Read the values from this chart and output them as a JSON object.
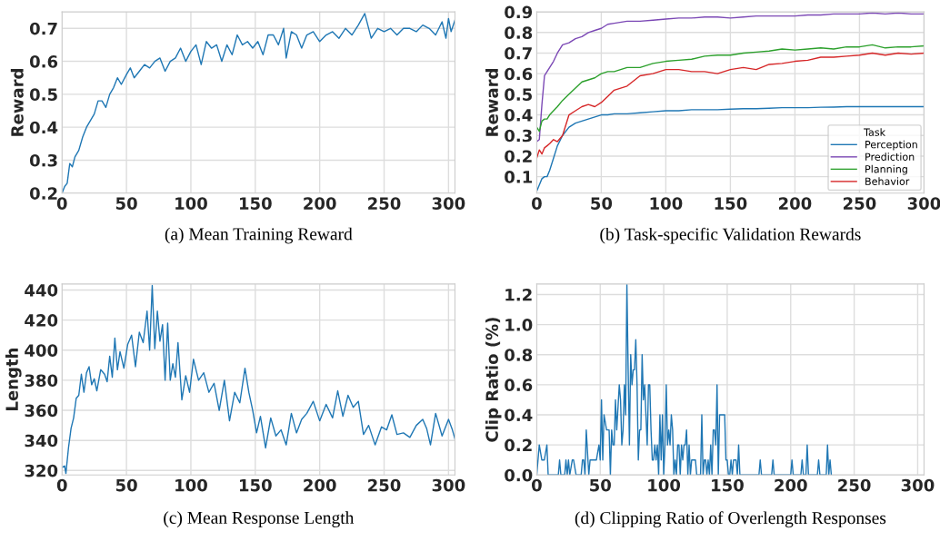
{
  "chart_data": [
    {
      "type": "line",
      "ylabel": "Reward",
      "annotations": [
        "(a) Mean Training Reward"
      ],
      "xlim": [
        0,
        305
      ],
      "ylim": [
        0.2,
        0.75
      ],
      "xticks": [
        0,
        50,
        100,
        150,
        200,
        250,
        300
      ],
      "yticks": [
        0.2,
        0.3,
        0.4,
        0.5,
        0.6,
        0.7
      ],
      "grid": true,
      "legend": false,
      "x": [
        0,
        2,
        4,
        6,
        8,
        10,
        13,
        16,
        19,
        22,
        25,
        28,
        31,
        34,
        37,
        40,
        43,
        46,
        50,
        53,
        56,
        60,
        64,
        68,
        72,
        76,
        80,
        84,
        88,
        92,
        96,
        100,
        104,
        108,
        112,
        116,
        120,
        124,
        128,
        132,
        136,
        140,
        144,
        148,
        152,
        156,
        160,
        164,
        168,
        172,
        174,
        178,
        182,
        186,
        190,
        195,
        200,
        205,
        210,
        215,
        220,
        225,
        230,
        235,
        240,
        245,
        250,
        255,
        260,
        265,
        270,
        275,
        280,
        285,
        290,
        295,
        298,
        300,
        302,
        305
      ],
      "series": [
        {
          "color": "#1f77b4",
          "values": [
            0.2,
            0.22,
            0.23,
            0.29,
            0.28,
            0.31,
            0.33,
            0.37,
            0.4,
            0.42,
            0.44,
            0.48,
            0.48,
            0.46,
            0.5,
            0.52,
            0.55,
            0.53,
            0.56,
            0.58,
            0.55,
            0.57,
            0.59,
            0.58,
            0.6,
            0.61,
            0.57,
            0.6,
            0.61,
            0.64,
            0.6,
            0.63,
            0.65,
            0.59,
            0.66,
            0.64,
            0.65,
            0.6,
            0.65,
            0.62,
            0.68,
            0.65,
            0.66,
            0.64,
            0.66,
            0.62,
            0.68,
            0.68,
            0.65,
            0.7,
            0.61,
            0.69,
            0.68,
            0.64,
            0.68,
            0.69,
            0.66,
            0.68,
            0.69,
            0.67,
            0.7,
            0.68,
            0.71,
            0.745,
            0.67,
            0.7,
            0.69,
            0.7,
            0.68,
            0.7,
            0.7,
            0.69,
            0.71,
            0.7,
            0.68,
            0.72,
            0.67,
            0.73,
            0.69,
            0.725
          ]
        }
      ]
    },
    {
      "type": "line",
      "ylabel": "Reward",
      "annotations": [
        "(b) Task-specific Validation Rewards"
      ],
      "xlim": [
        0,
        300
      ],
      "ylim": [
        0.02,
        0.9
      ],
      "xticks": [
        0,
        50,
        100,
        150,
        200,
        250,
        300
      ],
      "yticks": [
        0.1,
        0.2,
        0.3,
        0.4,
        0.5,
        0.6,
        0.7,
        0.8,
        0.9
      ],
      "grid": true,
      "legend": "bottom right",
      "legend_title": "Task",
      "x": [
        0,
        2,
        4,
        6,
        8,
        10,
        13,
        16,
        20,
        25,
        30,
        35,
        40,
        45,
        50,
        55,
        60,
        70,
        80,
        90,
        100,
        110,
        120,
        130,
        140,
        150,
        160,
        170,
        180,
        190,
        200,
        210,
        220,
        230,
        240,
        250,
        260,
        270,
        280,
        290,
        300
      ],
      "series": [
        {
          "name": "Perception",
          "color": "#1f77b4",
          "values": [
            0.03,
            0.06,
            0.09,
            0.1,
            0.1,
            0.13,
            0.19,
            0.25,
            0.3,
            0.34,
            0.36,
            0.37,
            0.38,
            0.39,
            0.4,
            0.4,
            0.405,
            0.405,
            0.41,
            0.415,
            0.42,
            0.42,
            0.425,
            0.425,
            0.425,
            0.428,
            0.43,
            0.43,
            0.432,
            0.435,
            0.435,
            0.435,
            0.437,
            0.438,
            0.44,
            0.44,
            0.44,
            0.44,
            0.44,
            0.44,
            0.44
          ]
        },
        {
          "name": "Prediction",
          "color": "#7b48b5",
          "values": [
            0.27,
            0.28,
            0.45,
            0.59,
            0.61,
            0.63,
            0.66,
            0.7,
            0.74,
            0.75,
            0.77,
            0.78,
            0.8,
            0.81,
            0.82,
            0.84,
            0.845,
            0.855,
            0.855,
            0.86,
            0.865,
            0.87,
            0.87,
            0.875,
            0.875,
            0.87,
            0.875,
            0.88,
            0.88,
            0.88,
            0.88,
            0.885,
            0.885,
            0.89,
            0.89,
            0.89,
            0.895,
            0.89,
            0.895,
            0.89,
            0.89
          ]
        },
        {
          "name": "Planning",
          "color": "#2ca02c",
          "values": [
            0.34,
            0.32,
            0.37,
            0.38,
            0.38,
            0.4,
            0.42,
            0.44,
            0.47,
            0.5,
            0.53,
            0.56,
            0.57,
            0.58,
            0.6,
            0.61,
            0.61,
            0.63,
            0.63,
            0.65,
            0.66,
            0.665,
            0.67,
            0.685,
            0.69,
            0.69,
            0.7,
            0.705,
            0.71,
            0.72,
            0.715,
            0.72,
            0.725,
            0.72,
            0.73,
            0.73,
            0.74,
            0.725,
            0.73,
            0.73,
            0.735
          ]
        },
        {
          "name": "Behavior",
          "color": "#d62728",
          "values": [
            0.19,
            0.23,
            0.21,
            0.24,
            0.25,
            0.26,
            0.28,
            0.27,
            0.3,
            0.4,
            0.42,
            0.44,
            0.45,
            0.44,
            0.46,
            0.49,
            0.52,
            0.54,
            0.59,
            0.6,
            0.62,
            0.62,
            0.61,
            0.61,
            0.6,
            0.62,
            0.63,
            0.62,
            0.645,
            0.65,
            0.66,
            0.665,
            0.68,
            0.68,
            0.685,
            0.69,
            0.7,
            0.69,
            0.7,
            0.695,
            0.7
          ]
        }
      ]
    },
    {
      "type": "line",
      "ylabel": "Length",
      "annotations": [
        "(c) Mean Response Length"
      ],
      "xlim": [
        0,
        305
      ],
      "ylim": [
        317,
        444
      ],
      "xticks": [
        0,
        50,
        100,
        150,
        200,
        250,
        300
      ],
      "yticks": [
        320,
        340,
        360,
        380,
        400,
        420,
        440
      ],
      "grid": true,
      "legend": false,
      "x": [
        0,
        2,
        3,
        5,
        7,
        9,
        11,
        13,
        15,
        17,
        19,
        21,
        23,
        25,
        27,
        30,
        33,
        35,
        37,
        39,
        41,
        43,
        45,
        48,
        51,
        54,
        57,
        60,
        63,
        66,
        68,
        70,
        72,
        74,
        76,
        78,
        80,
        82,
        84,
        86,
        88,
        90,
        93,
        96,
        99,
        102,
        106,
        110,
        114,
        118,
        122,
        126,
        130,
        134,
        138,
        142,
        145,
        148,
        151,
        154,
        158,
        162,
        166,
        170,
        174,
        178,
        182,
        186,
        190,
        195,
        200,
        205,
        210,
        214,
        218,
        222,
        226,
        230,
        234,
        238,
        243,
        248,
        252,
        256,
        260,
        265,
        270,
        275,
        280,
        283,
        286,
        290,
        295,
        300,
        303,
        305
      ],
      "series": [
        {
          "color": "#1f77b4",
          "values": [
            322,
            323,
            318,
            335,
            348,
            355,
            368,
            370,
            384,
            372,
            385,
            389,
            377,
            381,
            373,
            387,
            384,
            379,
            396,
            382,
            408,
            387,
            399,
            388,
            404,
            410,
            389,
            412,
            405,
            426,
            400,
            443,
            401,
            426,
            406,
            417,
            380,
            418,
            380,
            391,
            382,
            405,
            367,
            383,
            372,
            394,
            380,
            385,
            372,
            378,
            360,
            380,
            353,
            372,
            365,
            388,
            372,
            360,
            345,
            356,
            335,
            355,
            343,
            347,
            337,
            358,
            345,
            354,
            358,
            366,
            353,
            364,
            355,
            373,
            356,
            370,
            362,
            366,
            344,
            350,
            337,
            349,
            347,
            357,
            344,
            345,
            342,
            350,
            354,
            348,
            337,
            358,
            343,
            354,
            347,
            341
          ]
        }
      ]
    },
    {
      "type": "line",
      "ylabel": "Clip Ratio (%)",
      "annotations": [
        "(d) Clipping Ratio of Overlength Responses"
      ],
      "xlim": [
        0,
        305
      ],
      "ylim": [
        0,
        1.27
      ],
      "xticks": [
        0,
        50,
        100,
        150,
        200,
        250,
        300
      ],
      "yticks": [
        {
          "value": 0,
          "label": "0.0"
        },
        0.2,
        0.4,
        0.6,
        0.8,
        {
          "value": 1,
          "label": "1.0"
        },
        1.2
      ],
      "grid": true,
      "legend": false,
      "x": [
        0,
        2,
        4,
        6,
        8,
        9,
        17,
        18,
        19,
        22,
        23,
        24,
        25,
        26,
        28,
        29,
        31,
        35,
        36,
        37,
        38,
        39,
        41,
        42,
        47,
        49,
        50,
        51,
        52,
        53,
        55,
        57,
        58,
        59,
        60,
        61,
        62,
        63,
        65,
        66,
        67,
        68,
        69,
        70,
        71,
        72,
        73,
        74,
        75,
        76,
        77,
        78,
        79,
        80,
        81,
        82,
        83,
        84,
        85,
        86,
        87,
        88,
        89,
        90,
        91,
        92,
        93,
        94,
        95,
        96,
        97,
        98,
        99,
        100,
        101,
        102,
        103,
        104,
        105,
        106,
        107,
        108,
        109,
        110,
        111,
        112,
        113,
        114,
        115,
        116,
        117,
        118,
        119,
        120,
        121,
        122,
        125,
        126,
        129,
        130,
        131,
        132,
        133,
        134,
        135,
        136,
        137,
        138,
        139,
        140,
        141,
        142,
        143,
        144,
        148,
        149,
        150,
        151,
        152,
        153,
        154,
        155,
        157,
        158,
        159,
        160,
        175,
        176,
        177,
        185,
        186,
        187,
        200,
        201,
        202,
        208,
        209,
        210,
        212,
        213,
        214,
        221,
        222,
        223,
        228,
        229,
        230,
        231,
        232
      ],
      "series": [
        {
          "color": "#1f77b4",
          "values": [
            0,
            0.2,
            0.1,
            0.1,
            0.2,
            0,
            0,
            0.1,
            0,
            0,
            0.1,
            0,
            0.1,
            0,
            0.1,
            0.1,
            0,
            0,
            0.1,
            0.1,
            0,
            0.3,
            0,
            0.1,
            0.1,
            0.2,
            0.1,
            0.5,
            0.1,
            0.4,
            0.3,
            0.3,
            0,
            0.3,
            0.2,
            0.2,
            0.5,
            0.3,
            0.6,
            0.5,
            0.2,
            0.3,
            0.6,
            0.4,
            1.27,
            0.7,
            0.2,
            0.8,
            0.6,
            0.7,
            0.7,
            0.9,
            0.6,
            0.1,
            0.3,
            0.3,
            0.8,
            0.5,
            0.6,
            0.4,
            0.2,
            0.6,
            0.6,
            0.3,
            0.1,
            0.1,
            0.2,
            0.1,
            0.2,
            0,
            0.4,
            0.1,
            0.4,
            0,
            0.2,
            0.6,
            0.2,
            0.3,
            0.2,
            0.4,
            0.3,
            0,
            0.1,
            0,
            0.2,
            0.2,
            0,
            0.2,
            0.1,
            0.2,
            0.2,
            0.3,
            0,
            0.2,
            0,
            0.1,
            0.1,
            0,
            0,
            0.4,
            0,
            0.1,
            0.1,
            0,
            0.1,
            0,
            0.2,
            0,
            0.3,
            0.3,
            0.2,
            0.6,
            0,
            0.4,
            0.4,
            0.1,
            0.1,
            0,
            0,
            0.1,
            0,
            0.1,
            0.1,
            0,
            0.2,
            0,
            0,
            0.1,
            0,
            0,
            0.1,
            0,
            0,
            0.1,
            0,
            0,
            0.1,
            0,
            0,
            0.2,
            0,
            0,
            0.1,
            0,
            0,
            0.2,
            0,
            0.1,
            0
          ]
        }
      ]
    }
  ]
}
